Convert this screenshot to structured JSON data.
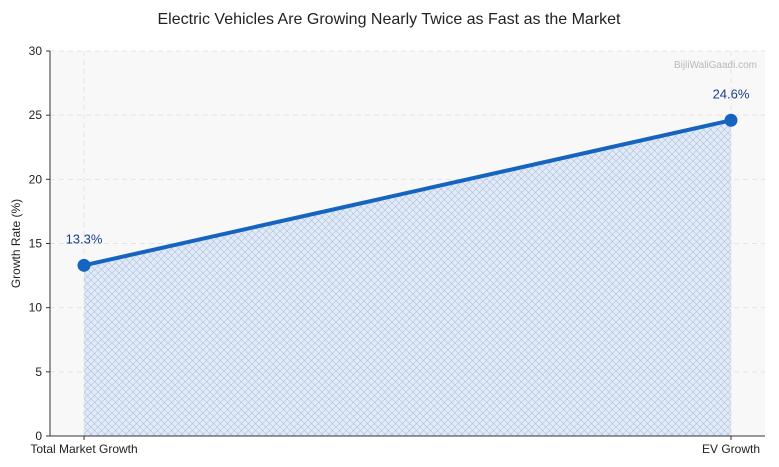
{
  "watermark": "BijliWaliGaadi.com",
  "colors": {
    "line": "#1565c0",
    "fill": "#dbe6f5",
    "hatch": "#a9c0e3",
    "label": "#1a3f8f",
    "plot_bg": "#f8f8f8",
    "grid": "#e3e3e3"
  },
  "chart_data": {
    "type": "area",
    "title": "Electric Vehicles Are Growing Nearly Twice as Fast as the Market",
    "xlabel": "",
    "ylabel": "Growth Rate (%)",
    "categories": [
      "Total Market Growth",
      "EV Growth"
    ],
    "values": [
      13.3,
      24.6
    ],
    "data_labels": [
      "13.3%",
      "24.6%"
    ],
    "ylim": [
      0,
      30
    ],
    "yticks": [
      0,
      5,
      10,
      15,
      20,
      25,
      30
    ],
    "grid": true
  }
}
